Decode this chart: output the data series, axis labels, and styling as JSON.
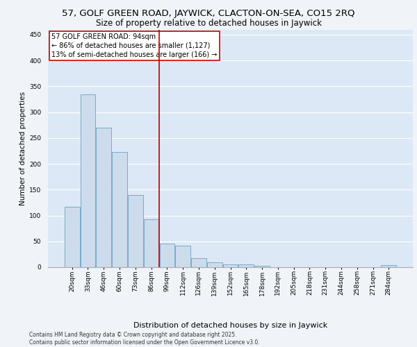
{
  "title1": "57, GOLF GREEN ROAD, JAYWICK, CLACTON-ON-SEA, CO15 2RQ",
  "title2": "Size of property relative to detached houses in Jaywick",
  "xlabel": "Distribution of detached houses by size in Jaywick",
  "ylabel": "Number of detached properties",
  "categories": [
    "20sqm",
    "33sqm",
    "46sqm",
    "60sqm",
    "73sqm",
    "86sqm",
    "99sqm",
    "112sqm",
    "126sqm",
    "139sqm",
    "152sqm",
    "165sqm",
    "178sqm",
    "192sqm",
    "205sqm",
    "218sqm",
    "231sqm",
    "244sqm",
    "258sqm",
    "271sqm",
    "284sqm"
  ],
  "values": [
    117,
    335,
    270,
    223,
    140,
    93,
    45,
    41,
    18,
    9,
    6,
    6,
    3,
    0,
    0,
    0,
    0,
    0,
    0,
    0,
    4
  ],
  "bar_color": "#cddcec",
  "bar_edge_color": "#7aaac8",
  "property_line_color": "#bb0000",
  "annotation_text": "57 GOLF GREEN ROAD: 94sqm\n← 86% of detached houses are smaller (1,127)\n13% of semi-detached houses are larger (166) →",
  "annotation_box_color": "#ffffff",
  "annotation_box_edge_color": "#cc0000",
  "ylim": [
    0,
    460
  ],
  "yticks": [
    0,
    50,
    100,
    150,
    200,
    250,
    300,
    350,
    400,
    450
  ],
  "plot_bg_color": "#dce8f5",
  "fig_bg_color": "#f0f4f8",
  "footer_text": "Contains HM Land Registry data © Crown copyright and database right 2025.\nContains public sector information licensed under the Open Government Licence v3.0.",
  "title1_fontsize": 9.5,
  "title2_fontsize": 8.5,
  "xlabel_fontsize": 8,
  "ylabel_fontsize": 7.5,
  "tick_fontsize": 6.5,
  "annotation_fontsize": 7,
  "footer_fontsize": 5.5
}
